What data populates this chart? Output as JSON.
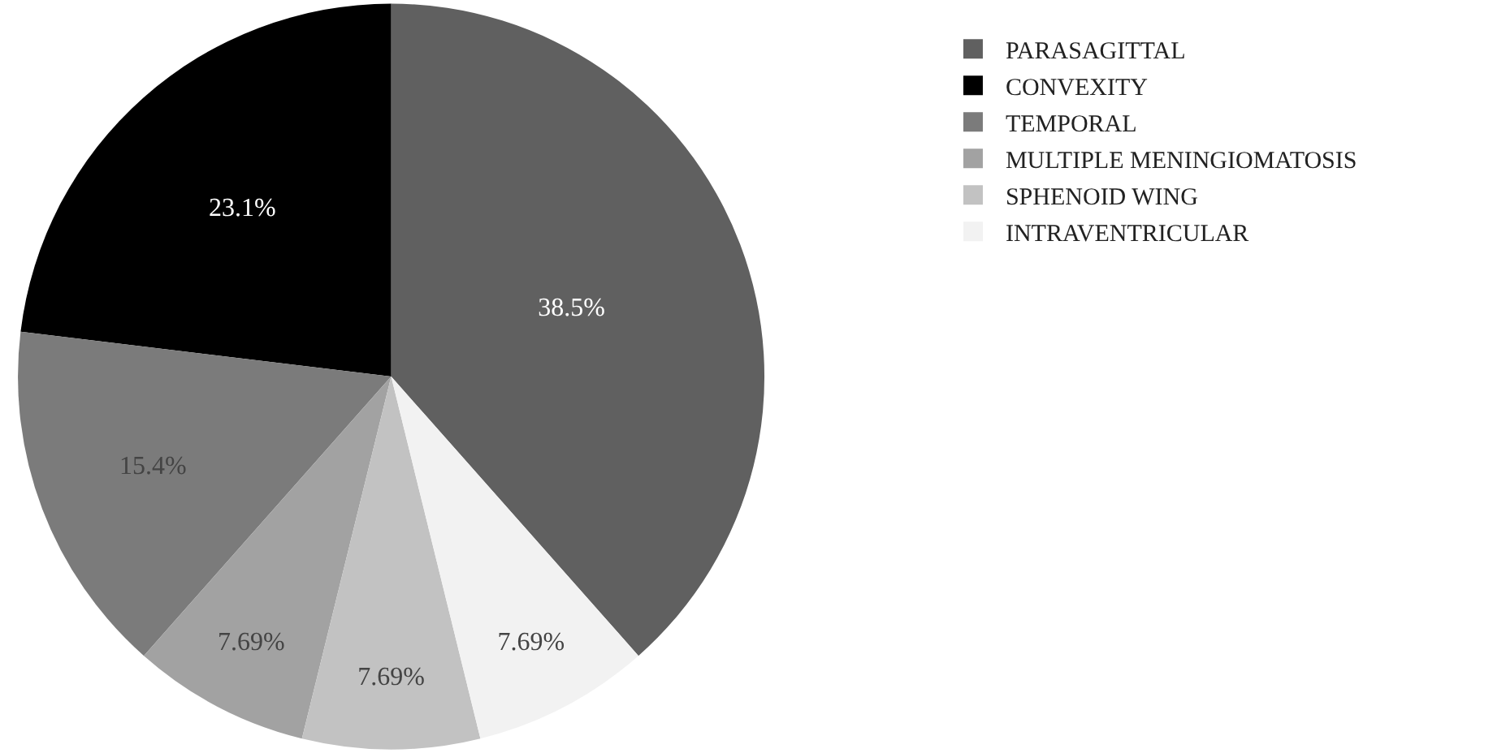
{
  "chart_data": {
    "type": "pie",
    "categories": [
      "PARASAGITTAL",
      "CONVEXITY",
      "TEMPORAL",
      "MULTIPLE MENINGIOMATOSIS",
      "SPHENOID WING",
      "INTRAVENTRICULAR"
    ],
    "values": [
      38.5,
      23.1,
      15.4,
      7.69,
      7.69,
      7.69
    ],
    "colors": [
      "#606060",
      "#000000",
      "#7b7b7b",
      "#a2a2a2",
      "#c2c2c2",
      "#f2f2f2"
    ],
    "value_labels": [
      "38.5%",
      "23.1%",
      "15.4%",
      "7.69%",
      "7.69%",
      "7.69%"
    ],
    "legend": "top right"
  }
}
